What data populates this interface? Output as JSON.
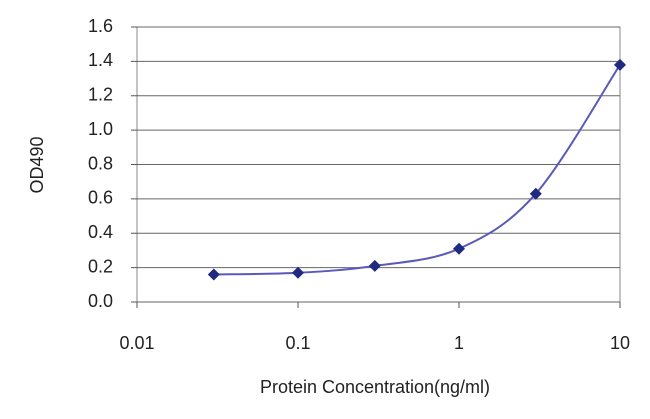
{
  "chart_data": {
    "type": "line",
    "x_label": "Protein Concentration(ng/ml)",
    "y_label": "OD490",
    "x": [
      0.03,
      0.1,
      0.3,
      1,
      3,
      10
    ],
    "series": [
      {
        "color": "#1f2a80",
        "line_color": "#5a5ab8",
        "values": [
          0.16,
          0.17,
          0.21,
          0.31,
          0.63,
          1.38
        ]
      }
    ],
    "xlog": true,
    "xlim": [
      0.01,
      10
    ],
    "xticks": [
      0.01,
      0.1,
      1,
      10
    ],
    "ylim": [
      0,
      1.6
    ],
    "yticks": [
      {
        "value": 0,
        "label": "0.0"
      },
      0.2,
      0.4,
      0.6,
      0.8,
      {
        "value": 1,
        "label": "1.0"
      },
      1.2,
      1.4,
      1.6
    ],
    "grid": true
  }
}
